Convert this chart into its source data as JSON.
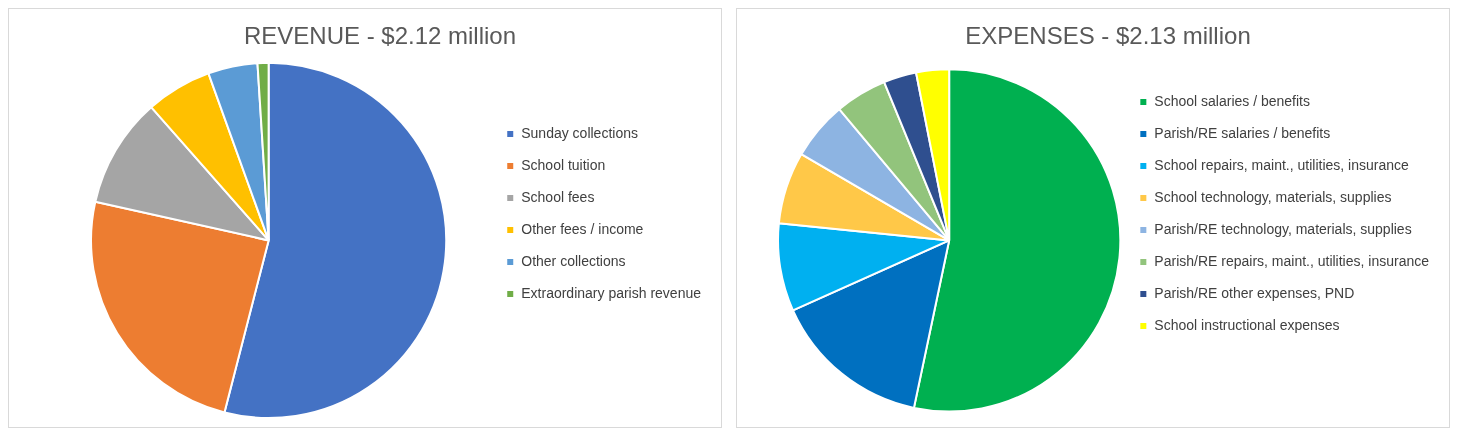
{
  "chart_data": [
    {
      "type": "pie",
      "title": "REVENUE - $2.12 million",
      "legend": "right",
      "categories": [
        "Sunday collections",
        "School tuition",
        "School fees",
        "Other fees / income",
        "Other collections",
        "Extraordinary parish revenue"
      ],
      "values": [
        54,
        24.5,
        10,
        6,
        4.5,
        1
      ],
      "colors": [
        "#4472c4",
        "#ed7d31",
        "#a5a5a5",
        "#ffc000",
        "#5b9bd5",
        "#70ad47"
      ]
    },
    {
      "type": "pie",
      "title": "EXPENSES - $2.13 million",
      "legend": "right",
      "categories": [
        "School salaries / benefits",
        "Parish/RE salaries / benefits",
        "School repairs, maint., utilities, insurance",
        "School technology, materials, supplies",
        "Parish/RE technology, materials, supplies",
        "Parish/RE repairs, maint., utilities, insurance",
        "Parish/RE other expenses, PND",
        "School instructional expenses"
      ],
      "values": [
        53.3,
        15,
        8.3,
        6.8,
        5.5,
        4.9,
        3.1,
        3.1
      ],
      "colors": [
        "#00b050",
        "#0070c0",
        "#00b0f0",
        "#ffc848",
        "#8db4e2",
        "#92c47c",
        "#2f4f8f",
        "#ffff00"
      ]
    }
  ]
}
